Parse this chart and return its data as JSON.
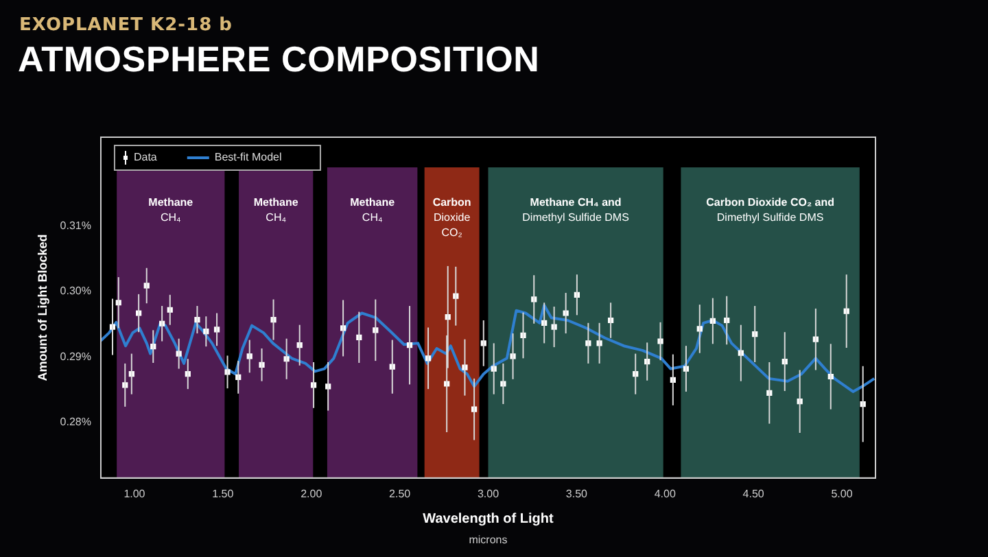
{
  "chart_data": {
    "type": "scatter",
    "title": "ATMOSPHERE COMPOSITION",
    "subtitle": "EXOPLANET K2-18 b",
    "xlabel": "Wavelength of Light",
    "ylabel": "Amount of Light Blocked",
    "annotations": [
      "microns"
    ],
    "xlim": [
      0.81,
      5.19
    ],
    "ylim": [
      0.2715,
      0.3236
    ],
    "xticks": [
      {
        "value": 1,
        "label": "1.00"
      },
      {
        "value": 1.5,
        "label": "1.50"
      },
      {
        "value": 2,
        "label": "2.00"
      },
      {
        "value": 2.5,
        "label": "2.50"
      },
      {
        "value": 3,
        "label": "3.00"
      },
      {
        "value": 3.5,
        "label": "3.50"
      },
      {
        "value": 4,
        "label": "4.00"
      },
      {
        "value": 4.5,
        "label": "4.50"
      },
      {
        "value": 5,
        "label": "5.00"
      }
    ],
    "yticks": [
      {
        "value": 0.28,
        "label": "0.28%"
      },
      {
        "value": 0.29,
        "label": "0.29%"
      },
      {
        "value": 0.3,
        "label": "0.30%"
      },
      {
        "value": 0.31,
        "label": "0.31%"
      }
    ],
    "grid": false,
    "legend": "top left",
    "marker": "square",
    "bands": [
      {
        "axis": "x",
        "from": 0.9,
        "to": 1.51,
        "label": "Methane\nCH₄",
        "color": "#5c2160"
      },
      {
        "axis": "x",
        "from": 1.59,
        "to": 2.01,
        "label": "Methane\nCH₄",
        "color": "#5c2160"
      },
      {
        "axis": "x",
        "from": 2.09,
        "to": 2.6,
        "label": "Methane\nCH₄",
        "color": "#5c2160"
      },
      {
        "axis": "x",
        "from": 2.64,
        "to": 2.95,
        "label": "Carbon\nDioxide\nCO₂",
        "color": "#a8301a"
      },
      {
        "axis": "x",
        "from": 3.0,
        "to": 3.99,
        "label": "Methane CH₄ and\nDimethyl Sulfide DMS",
        "color": "#2c5e55"
      },
      {
        "axis": "x",
        "from": 4.09,
        "to": 5.1,
        "label": "Carbon Dioxide CO₂ and\nDimethyl Sulfide DMS",
        "color": "#2c5e55"
      }
    ],
    "series": [
      {
        "name": "Data",
        "color": "#ffffff",
        "x": [
          0.876,
          0.91,
          0.947,
          0.984,
          1.024,
          1.069,
          1.106,
          1.156,
          1.201,
          1.251,
          1.302,
          1.355,
          1.405,
          1.466,
          1.526,
          1.587,
          1.651,
          1.72,
          1.786,
          1.86,
          1.934,
          2.013,
          2.095,
          2.18,
          2.27,
          2.363,
          2.458,
          2.556,
          2.661,
          2.772,
          2.766,
          2.817,
          2.868,
          2.921,
          2.974,
          3.032,
          3.085,
          3.14,
          3.198,
          3.259,
          3.317,
          3.373,
          3.439,
          3.502,
          3.566,
          3.629,
          3.693,
          3.833,
          3.899,
          3.974,
          4.045,
          4.119,
          4.196,
          4.27,
          4.349,
          4.429,
          4.508,
          4.59,
          4.677,
          4.762,
          4.852,
          4.937,
          5.026,
          5.119
        ],
        "values": [
          0.2946,
          0.2983,
          0.2857,
          0.2874,
          0.2967,
          0.3009,
          0.2916,
          0.2951,
          0.2972,
          0.2905,
          0.2874,
          0.2957,
          0.2939,
          0.2942,
          0.2877,
          0.2869,
          0.2901,
          0.2888,
          0.2957,
          0.2897,
          0.2918,
          0.2857,
          0.2855,
          0.2944,
          0.293,
          0.2941,
          0.2885,
          0.2918,
          0.2898,
          0.2961,
          0.2859,
          0.2993,
          0.2884,
          0.282,
          0.2921,
          0.2882,
          0.2859,
          0.2901,
          0.2933,
          0.2988,
          0.2952,
          0.2946,
          0.2967,
          0.2995,
          0.2921,
          0.2921,
          0.2956,
          0.2874,
          0.2893,
          0.2924,
          0.2865,
          0.2882,
          0.2943,
          0.2955,
          0.2956,
          0.2906,
          0.2935,
          0.2845,
          0.2893,
          0.2832,
          0.2927,
          0.287,
          0.297,
          0.2828
        ],
        "errors": [
          0.0043,
          0.0039,
          0.0033,
          0.0031,
          0.0029,
          0.0027,
          0.0025,
          0.0027,
          0.0023,
          0.0023,
          0.0023,
          0.0021,
          0.0023,
          0.0025,
          0.0025,
          0.0025,
          0.0025,
          0.0025,
          0.0031,
          0.0031,
          0.0031,
          0.0035,
          0.0037,
          0.0043,
          0.0039,
          0.0047,
          0.0041,
          0.006,
          0.0047,
          0.0078,
          0.0074,
          0.0045,
          0.0043,
          0.0047,
          0.0035,
          0.0039,
          0.0031,
          0.0035,
          0.0035,
          0.0037,
          0.0031,
          0.0031,
          0.0031,
          0.0031,
          0.0031,
          0.0031,
          0.0027,
          0.0031,
          0.0029,
          0.0029,
          0.0039,
          0.0035,
          0.0037,
          0.0035,
          0.0037,
          0.0043,
          0.0043,
          0.0047,
          0.0045,
          0.0048,
          0.0047,
          0.005,
          0.0056,
          0.0058
        ]
      },
      {
        "name": "Best-fit Model",
        "type": "line",
        "color": "#2f7fd0",
        "marker": "none",
        "x": [
          0.81,
          0.857,
          0.897,
          0.95,
          0.99,
          1.029,
          1.069,
          1.09,
          1.148,
          1.175,
          1.228,
          1.28,
          1.347,
          1.386,
          1.439,
          1.519,
          1.571,
          1.611,
          1.664,
          1.73,
          1.783,
          1.889,
          1.968,
          2.021,
          2.074,
          2.127,
          2.206,
          2.286,
          2.365,
          2.444,
          2.524,
          2.603,
          2.656,
          2.709,
          2.762,
          2.788,
          2.841,
          2.881,
          2.921,
          2.974,
          3.026,
          3.106,
          3.159,
          3.212,
          3.291,
          3.317,
          3.357,
          3.45,
          3.556,
          3.661,
          3.767,
          3.873,
          3.979,
          4.032,
          4.111,
          4.177,
          4.217,
          4.27,
          4.323,
          4.376,
          4.482,
          4.587,
          4.693,
          4.772,
          4.852,
          4.905,
          4.958,
          5.063,
          5.116,
          5.183
        ],
        "values": [
          0.2925,
          0.2937,
          0.2953,
          0.2917,
          0.2937,
          0.2944,
          0.2921,
          0.2905,
          0.2953,
          0.2948,
          0.2921,
          0.289,
          0.2952,
          0.294,
          0.2921,
          0.2882,
          0.2874,
          0.2913,
          0.2948,
          0.2937,
          0.2921,
          0.2898,
          0.289,
          0.2878,
          0.2882,
          0.2898,
          0.2952,
          0.2967,
          0.296,
          0.294,
          0.2919,
          0.2921,
          0.289,
          0.2913,
          0.2905,
          0.2917,
          0.2882,
          0.2874,
          0.2855,
          0.2874,
          0.2886,
          0.2898,
          0.2971,
          0.2967,
          0.2952,
          0.2979,
          0.296,
          0.2956,
          0.2944,
          0.2929,
          0.2917,
          0.291,
          0.2898,
          0.2882,
          0.2886,
          0.2913,
          0.2952,
          0.2956,
          0.2948,
          0.2921,
          0.2894,
          0.2867,
          0.2863,
          0.2874,
          0.2898,
          0.2882,
          0.2867,
          0.2847,
          0.2855,
          0.2867
        ]
      }
    ]
  }
}
